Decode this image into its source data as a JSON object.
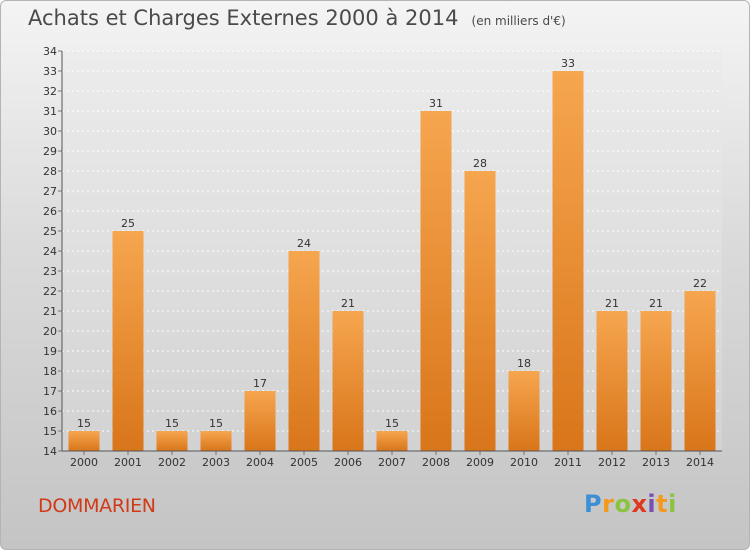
{
  "title": "Achats et Charges Externes 2000 à 2014",
  "unit": "(en milliers d'€)",
  "commune": "DOMMARIEN",
  "logo": {
    "letters": [
      "P",
      "r",
      "o",
      "x",
      "i",
      "t",
      "i"
    ]
  },
  "colors": {
    "bar_light": "#f6a64f",
    "bar_dark": "#d9751a",
    "commune": "#d03a17",
    "title": "#4a4a4a"
  },
  "chart_data": {
    "type": "bar",
    "categories": [
      "2000",
      "2001",
      "2002",
      "2003",
      "2004",
      "2005",
      "2006",
      "2007",
      "2008",
      "2009",
      "2010",
      "2011",
      "2012",
      "2013",
      "2014"
    ],
    "values": [
      15,
      25,
      15,
      15,
      17,
      24,
      21,
      15,
      31,
      28,
      18,
      33,
      21,
      21,
      22
    ],
    "ylim": [
      14,
      34
    ],
    "yticks": [
      14,
      15,
      16,
      17,
      18,
      19,
      20,
      21,
      22,
      23,
      24,
      25,
      26,
      27,
      28,
      29,
      30,
      31,
      32,
      33,
      34
    ],
    "grid": true,
    "xlabel": "",
    "ylabel": ""
  }
}
